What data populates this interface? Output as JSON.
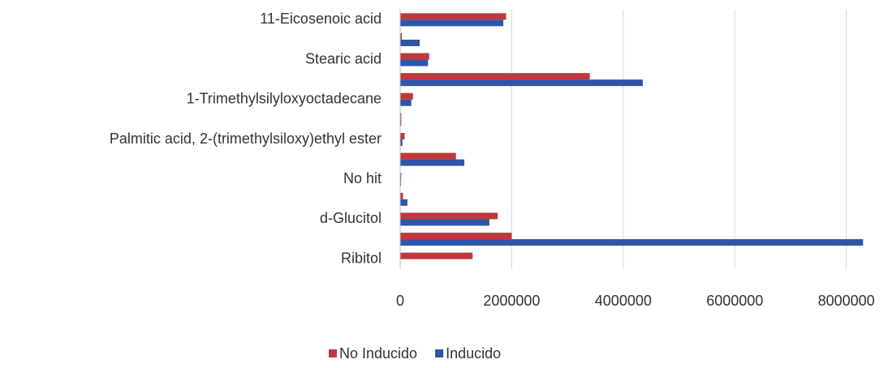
{
  "chart_data": {
    "type": "hbar",
    "categories": [
      "11-Eicosenoic acid",
      null,
      "Stearic acid",
      null,
      "1-Trimethylsilyloxyoctadecane",
      null,
      "Palmitic acid, 2-(trimethylsiloxy)ethyl ester",
      null,
      "No hit",
      null,
      "d-Glucitol",
      null,
      "Ribitol"
    ],
    "series": [
      {
        "name": "No Inducido",
        "color": "#c0383b",
        "values": [
          1900000,
          30000,
          520000,
          3400000,
          230000,
          20000,
          80000,
          1000000,
          20000,
          50000,
          1750000,
          2000000,
          1300000
        ]
      },
      {
        "name": "Inducido",
        "color": "#2e55a8",
        "values": [
          1850000,
          350000,
          500000,
          4350000,
          200000,
          20000,
          40000,
          1150000,
          15000,
          130000,
          1600000,
          8300000,
          0
        ]
      }
    ],
    "xlim": [
      0,
      8500000
    ],
    "xticks": [
      0,
      2000000,
      4000000,
      6000000,
      8000000
    ],
    "grid": true,
    "legend": "bottom"
  }
}
